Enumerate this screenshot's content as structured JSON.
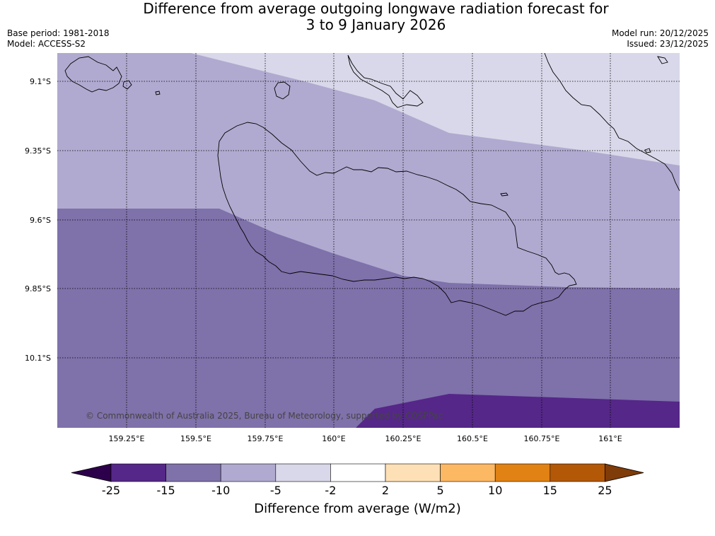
{
  "title_line1": "Difference from average outgoing longwave radiation forecast for",
  "title_line2": "3 to 9 January 2026",
  "meta": {
    "base_period": "Base period: 1981-2018",
    "model": "Model: ACCESS-S2",
    "model_run": "Model run: 20/12/2025",
    "issued": "Issued: 23/12/2025"
  },
  "map": {
    "lat_labels": [
      "9.1°S",
      "9.35°S",
      "9.6°S",
      "9.85°S",
      "10.1°S"
    ],
    "lon_labels": [
      "159.25°E",
      "159.5°E",
      "159.75°E",
      "160°E",
      "160.25°E",
      "160.5°E",
      "160.75°E",
      "161°E"
    ],
    "copyright": "© Commonwealth of Australia 2025, Bureau of Meteorology, supported by COSPPac"
  },
  "colorbar": {
    "labels": [
      "-25",
      "-15",
      "-10",
      "-5",
      "-2",
      "2",
      "5",
      "10",
      "15",
      "25"
    ],
    "colors": [
      "#552788",
      "#7f71aa",
      "#b0aad0",
      "#d8d8ea",
      "#ffffff",
      "#fee0b6",
      "#fdb863",
      "#e08214",
      "#b35806"
    ],
    "extend_low_color": "#2d004b",
    "extend_high_color": "#7f3b08",
    "title": "Difference from average (W/m2)"
  },
  "contour_colors": {
    "band_m2_m5": "#d8d8ea",
    "band_m5_m10": "#b0aad0",
    "band_m10_m15": "#7f71aa",
    "band_m15_m25": "#552788"
  }
}
